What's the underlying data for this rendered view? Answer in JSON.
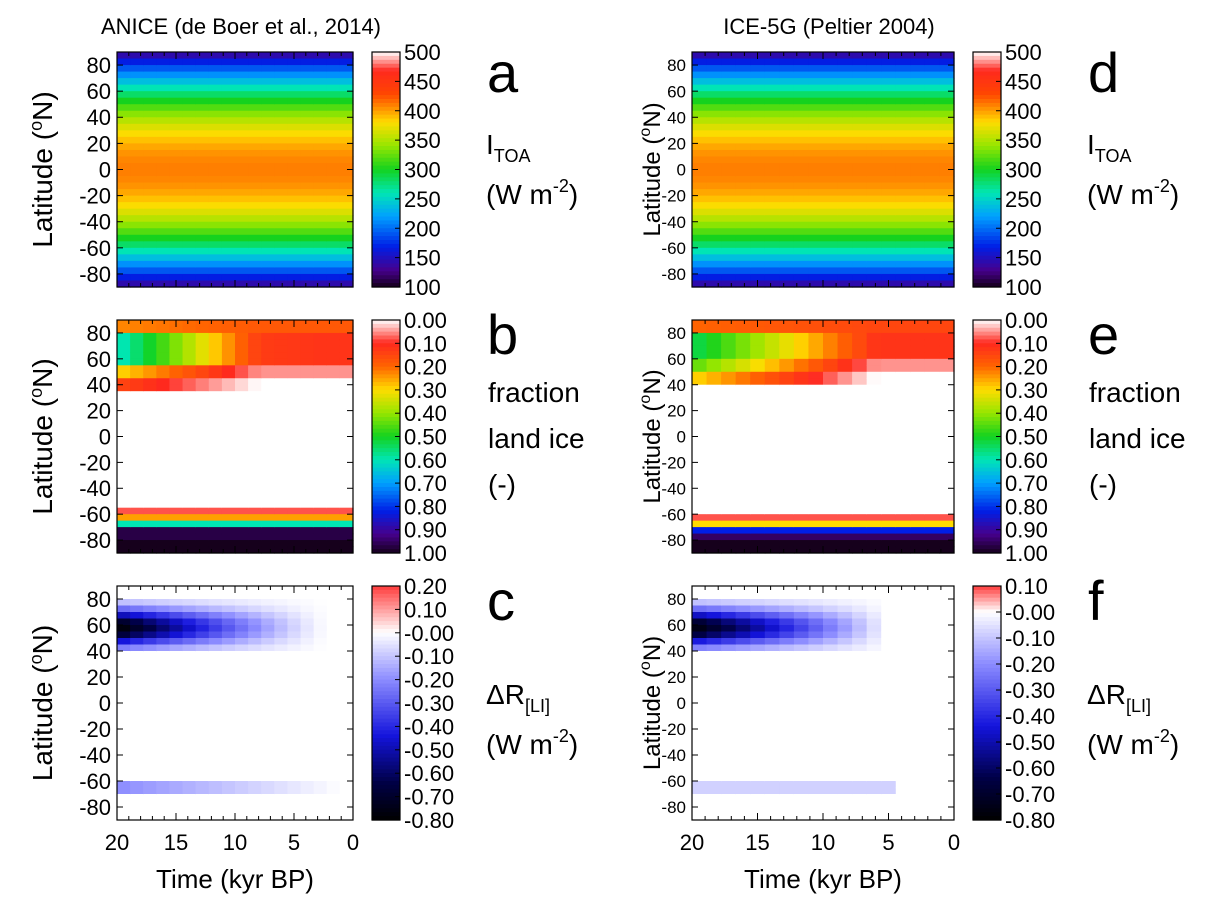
{
  "chart_data": [
    {
      "panel": "a",
      "type": "heatmap",
      "title": "ANICE (de Boer et al., 2014)",
      "ylabel": "Latitude (",
      "ylabel_sup": "o",
      "ylabel_tail": "N)",
      "xlabel": "",
      "ylim": [
        -90,
        90
      ],
      "xlim": [
        20,
        0
      ],
      "yticks": [
        "80",
        "60",
        "40",
        "20",
        "0",
        "-20",
        "-40",
        "-60",
        "-80"
      ],
      "xticks": [],
      "colorbar": {
        "ticks": [
          "500",
          "450",
          "400",
          "350",
          "300",
          "250",
          "200",
          "150",
          "100"
        ],
        "range": [
          100,
          500
        ],
        "palette": "rainbow"
      },
      "side_label": {
        "base": "I",
        "sub": "TOA",
        "units_pre": "(W m",
        "units_sup": "-2",
        "units_post": ")"
      },
      "value_model": "insolation"
    },
    {
      "panel": "b",
      "type": "heatmap",
      "title": "",
      "ylabel": "Latitude (",
      "ylabel_sup": "o",
      "ylabel_tail": "N)",
      "xlabel": "",
      "ylim": [
        -90,
        90
      ],
      "xlim": [
        20,
        0
      ],
      "yticks": [
        "80",
        "60",
        "40",
        "20",
        "0",
        "-20",
        "-40",
        "-60",
        "-80"
      ],
      "xticks": [],
      "colorbar": {
        "ticks": [
          "0.00",
          "0.10",
          "0.20",
          "0.30",
          "0.40",
          "0.50",
          "0.60",
          "0.70",
          "0.80",
          "0.90",
          "1.00"
        ],
        "range": [
          0,
          1
        ],
        "palette": "ice"
      },
      "side_label": {
        "lines": [
          "fraction",
          "land ice",
          "(-)"
        ]
      },
      "value_model": "ice_anice"
    },
    {
      "panel": "c",
      "type": "heatmap",
      "title": "",
      "ylabel": "Latitude (",
      "ylabel_sup": "o",
      "ylabel_tail": "N)",
      "xlabel": "Time (kyr BP)",
      "ylim": [
        -90,
        90
      ],
      "xlim": [
        20,
        0
      ],
      "yticks": [
        "80",
        "60",
        "40",
        "20",
        "0",
        "-20",
        "-40",
        "-60",
        "-80"
      ],
      "xticks": [
        "20",
        "15",
        "10",
        "5",
        "0"
      ],
      "colorbar": {
        "ticks": [
          "0.20",
          "0.10",
          "-0.00",
          "-0.10",
          "-0.20",
          "-0.30",
          "-0.40",
          "-0.50",
          "-0.60",
          "-0.70",
          "-0.80"
        ],
        "range": [
          -0.8,
          0.2
        ],
        "palette": "diverging"
      },
      "side_label": {
        "base": "ΔR",
        "sub": "[LI]",
        "units_pre": "(W m",
        "units_sup": "-2",
        "units_post": ")"
      },
      "value_model": "dr_anice"
    },
    {
      "panel": "d",
      "type": "heatmap",
      "title": "ICE-5G (Peltier 2004)",
      "ylabel": "Latitude (",
      "ylabel_sup": "o",
      "ylabel_tail": "N)",
      "xlabel": "",
      "ylim": [
        -90,
        90
      ],
      "xlim": [
        20,
        0
      ],
      "yticks": [
        "80",
        "60",
        "40",
        "20",
        "0",
        "-20",
        "-40",
        "-60",
        "-80"
      ],
      "xticks": [],
      "colorbar": {
        "ticks": [
          "500",
          "450",
          "400",
          "350",
          "300",
          "250",
          "200",
          "150",
          "100"
        ],
        "range": [
          100,
          500
        ],
        "palette": "rainbow"
      },
      "side_label": {
        "base": "I",
        "sub": "TOA",
        "units_pre": "(W m",
        "units_sup": "-2",
        "units_post": ")"
      },
      "value_model": "insolation"
    },
    {
      "panel": "e",
      "type": "heatmap",
      "title": "",
      "ylabel": "Latitude (",
      "ylabel_sup": "o",
      "ylabel_tail": "N)",
      "xlabel": "",
      "ylim": [
        -90,
        90
      ],
      "xlim": [
        20,
        0
      ],
      "yticks": [
        "80",
        "60",
        "40",
        "20",
        "0",
        "-20",
        "-40",
        "-60",
        "-80"
      ],
      "xticks": [],
      "colorbar": {
        "ticks": [
          "0.00",
          "0.10",
          "0.20",
          "0.30",
          "0.40",
          "0.50",
          "0.60",
          "0.70",
          "0.80",
          "0.90",
          "1.00"
        ],
        "range": [
          0,
          1
        ],
        "palette": "ice"
      },
      "side_label": {
        "lines": [
          "fraction",
          "land ice",
          "(-)"
        ]
      },
      "value_model": "ice_ice5g"
    },
    {
      "panel": "f",
      "type": "heatmap",
      "title": "",
      "ylabel": "Latitude (",
      "ylabel_sup": "o",
      "ylabel_tail": "N)",
      "xlabel": "Time (kyr BP)",
      "ylim": [
        -90,
        90
      ],
      "xlim": [
        20,
        0
      ],
      "yticks": [
        "80",
        "60",
        "40",
        "20",
        "0",
        "-20",
        "-40",
        "-60",
        "-80"
      ],
      "xticks": [
        "20",
        "15",
        "10",
        "5",
        "0"
      ],
      "colorbar": {
        "ticks": [
          "0.10",
          "-0.00",
          "-0.10",
          "-0.20",
          "-0.30",
          "-0.40",
          "-0.50",
          "-0.60",
          "-0.70",
          "-0.80"
        ],
        "range": [
          -0.8,
          0.1
        ],
        "palette": "diverging"
      },
      "side_label": {
        "base": "ΔR",
        "sub": "[LI]",
        "units_pre": "(W m",
        "units_sup": "-2",
        "units_post": ")"
      },
      "value_model": "dr_ice5g"
    }
  ]
}
